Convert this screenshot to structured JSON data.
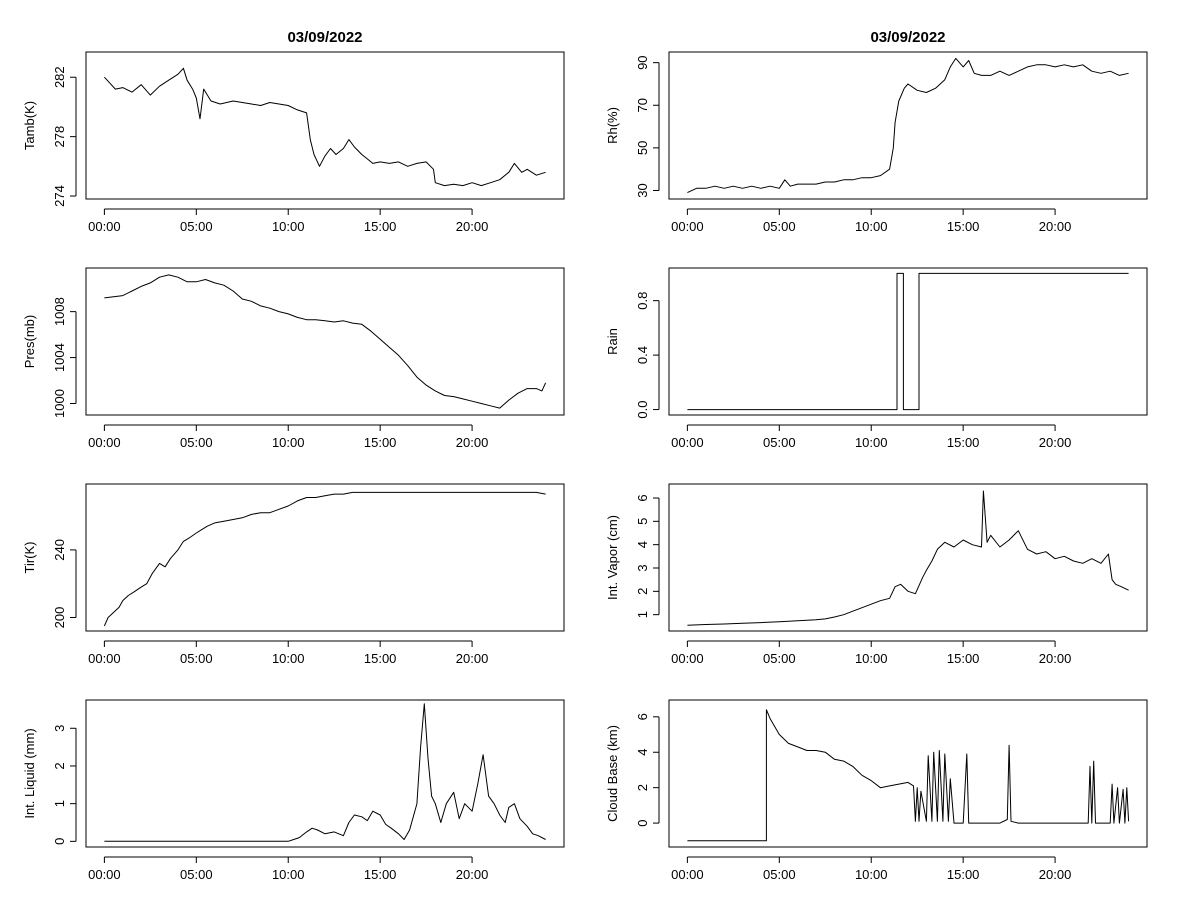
{
  "chart_data": [
    {
      "type": "line",
      "title": "03/09/2022",
      "xlabel": "",
      "ylabel": "Tamb(K)",
      "xlim": [
        -1,
        25
      ],
      "ylim": [
        273.8,
        283.7
      ],
      "xticks": [
        0,
        5,
        10,
        15,
        20
      ],
      "xtick_labels": [
        "00:00",
        "05:00",
        "10:00",
        "15:00",
        "20:00"
      ],
      "yticks": [
        274,
        278,
        282
      ],
      "ytick_labels": [
        "274",
        "278",
        "282"
      ],
      "grid": false,
      "legend": "none",
      "x": [
        0.0,
        0.3,
        0.6,
        1.0,
        1.5,
        2.0,
        2.5,
        3.0,
        3.5,
        4.0,
        4.3,
        4.5,
        4.8,
        5.0,
        5.2,
        5.4,
        5.8,
        6.3,
        7.0,
        7.5,
        8.0,
        8.5,
        9.0,
        9.5,
        10.0,
        10.5,
        11.0,
        11.2,
        11.4,
        11.7,
        12.0,
        12.3,
        12.6,
        13.0,
        13.3,
        13.6,
        14.0,
        14.3,
        14.6,
        15.0,
        15.5,
        16.0,
        16.5,
        17.0,
        17.5,
        17.9,
        18.0,
        18.5,
        19.0,
        19.5,
        20.0,
        20.5,
        21.0,
        21.5,
        22.0,
        22.3,
        22.7,
        23.0,
        23.5,
        24.0
      ],
      "y": [
        282.0,
        281.6,
        281.2,
        281.3,
        281.0,
        281.5,
        280.8,
        281.4,
        281.8,
        282.2,
        282.6,
        281.8,
        281.2,
        280.6,
        279.2,
        281.2,
        280.4,
        280.2,
        280.4,
        280.3,
        280.2,
        280.1,
        280.3,
        280.2,
        280.1,
        279.8,
        279.6,
        277.8,
        276.8,
        276.0,
        276.7,
        277.2,
        276.8,
        277.2,
        277.8,
        277.3,
        276.8,
        276.5,
        276.2,
        276.3,
        276.2,
        276.3,
        276.0,
        276.2,
        276.3,
        275.8,
        274.9,
        274.7,
        274.8,
        274.7,
        274.9,
        274.7,
        274.9,
        275.1,
        275.6,
        276.2,
        275.6,
        275.8,
        275.4,
        275.6
      ]
    },
    {
      "type": "line",
      "title": "03/09/2022",
      "xlabel": "",
      "ylabel": "Rh(%)",
      "xlim": [
        -1,
        25
      ],
      "ylim": [
        26,
        95
      ],
      "xticks": [
        0,
        5,
        10,
        15,
        20
      ],
      "xtick_labels": [
        "00:00",
        "05:00",
        "10:00",
        "15:00",
        "20:00"
      ],
      "yticks": [
        30,
        50,
        70,
        90
      ],
      "ytick_labels": [
        "30",
        "50",
        "70",
        "90"
      ],
      "grid": false,
      "legend": "none",
      "x": [
        0.0,
        0.5,
        1.0,
        1.5,
        2.0,
        2.5,
        3.0,
        3.5,
        4.0,
        4.5,
        5.0,
        5.3,
        5.6,
        6.0,
        6.5,
        7.0,
        7.5,
        8.0,
        8.5,
        9.0,
        9.5,
        10.0,
        10.5,
        11.0,
        11.2,
        11.3,
        11.5,
        11.8,
        12.0,
        12.5,
        13.0,
        13.5,
        14.0,
        14.3,
        14.6,
        15.0,
        15.3,
        15.6,
        16.0,
        16.5,
        17.0,
        17.5,
        18.0,
        18.5,
        19.0,
        19.5,
        20.0,
        20.5,
        21.0,
        21.5,
        22.0,
        22.5,
        23.0,
        23.5,
        24.0
      ],
      "y": [
        29,
        31,
        31,
        32,
        31,
        32,
        31,
        32,
        31,
        32,
        31,
        35,
        32,
        33,
        33,
        33,
        34,
        34,
        35,
        35,
        36,
        36,
        37,
        40,
        50,
        62,
        72,
        78,
        80,
        77,
        76,
        78,
        82,
        88,
        92,
        88,
        91,
        85,
        84,
        84,
        86,
        84,
        86,
        88,
        89,
        89,
        88,
        89,
        88,
        89,
        86,
        85,
        86,
        84,
        85
      ]
    },
    {
      "type": "line",
      "title": "",
      "xlabel": "",
      "ylabel": "Pres(mb)",
      "xlim": [
        -1,
        25
      ],
      "ylim": [
        999.0,
        1011.8
      ],
      "xticks": [
        0,
        5,
        10,
        15,
        20
      ],
      "xtick_labels": [
        "00:00",
        "05:00",
        "10:00",
        "15:00",
        "20:00"
      ],
      "yticks": [
        1000,
        1004,
        1008
      ],
      "ytick_labels": [
        "1000",
        "1004",
        "1008"
      ],
      "grid": false,
      "legend": "none",
      "x": [
        0.0,
        0.5,
        1.0,
        1.5,
        2.0,
        2.5,
        3.0,
        3.5,
        4.0,
        4.5,
        5.0,
        5.5,
        6.0,
        6.5,
        7.0,
        7.5,
        8.0,
        8.5,
        9.0,
        9.5,
        10.0,
        10.5,
        11.0,
        11.5,
        12.0,
        12.5,
        13.0,
        13.5,
        14.0,
        14.5,
        15.0,
        15.5,
        16.0,
        16.5,
        17.0,
        17.5,
        18.0,
        18.5,
        19.0,
        19.5,
        20.0,
        20.5,
        21.0,
        21.5,
        22.0,
        22.5,
        23.0,
        23.5,
        23.8,
        24.0
      ],
      "y": [
        1009.2,
        1009.3,
        1009.4,
        1009.8,
        1010.2,
        1010.5,
        1011.0,
        1011.2,
        1011.0,
        1010.6,
        1010.6,
        1010.8,
        1010.5,
        1010.3,
        1009.8,
        1009.1,
        1008.9,
        1008.5,
        1008.3,
        1008.0,
        1007.8,
        1007.5,
        1007.3,
        1007.3,
        1007.2,
        1007.1,
        1007.2,
        1007.0,
        1006.9,
        1006.3,
        1005.6,
        1004.9,
        1004.2,
        1003.3,
        1002.3,
        1001.6,
        1001.1,
        1000.7,
        1000.6,
        1000.4,
        1000.2,
        1000.0,
        999.8,
        999.6,
        1000.3,
        1000.9,
        1001.3,
        1001.3,
        1001.1,
        1001.8
      ]
    },
    {
      "type": "line",
      "title": "",
      "xlabel": "",
      "ylabel": "Rain",
      "xlim": [
        -1,
        25
      ],
      "ylim": [
        -0.04,
        1.04
      ],
      "xticks": [
        0,
        5,
        10,
        15,
        20
      ],
      "xtick_labels": [
        "00:00",
        "05:00",
        "10:00",
        "15:00",
        "20:00"
      ],
      "yticks": [
        0.0,
        0.4,
        0.8
      ],
      "ytick_labels": [
        "0.0",
        "0.4",
        "0.8"
      ],
      "grid": false,
      "legend": "none",
      "step": true,
      "x": [
        0.0,
        11.4,
        11.4,
        11.75,
        11.75,
        12.6,
        12.6,
        24.0
      ],
      "y": [
        0,
        0,
        1,
        1,
        0,
        0,
        1,
        1
      ]
    },
    {
      "type": "line",
      "title": "",
      "xlabel": "",
      "ylabel": "Tir(K)",
      "xlim": [
        -1,
        25
      ],
      "ylim": [
        192,
        279
      ],
      "xticks": [
        0,
        5,
        10,
        15,
        20
      ],
      "xtick_labels": [
        "00:00",
        "05:00",
        "10:00",
        "15:00",
        "20:00"
      ],
      "yticks": [
        200,
        240
      ],
      "ytick_labels": [
        "200",
        "240"
      ],
      "grid": false,
      "legend": "none",
      "x": [
        0.0,
        0.2,
        0.5,
        0.8,
        1.0,
        1.3,
        1.6,
        2.0,
        2.3,
        2.6,
        3.0,
        3.3,
        3.6,
        4.0,
        4.3,
        4.6,
        5.0,
        5.3,
        5.6,
        6.0,
        6.5,
        7.0,
        7.5,
        8.0,
        8.5,
        9.0,
        9.5,
        10.0,
        10.5,
        11.0,
        11.5,
        12.0,
        12.5,
        13.0,
        13.5,
        14.0,
        15.0,
        16.0,
        17.0,
        18.0,
        19.0,
        20.0,
        21.0,
        22.0,
        23.0,
        23.5,
        24.0
      ],
      "y": [
        195,
        200,
        203,
        206,
        210,
        213,
        215,
        218,
        220,
        226,
        232,
        230,
        235,
        240,
        245,
        247,
        250,
        252,
        254,
        256,
        257,
        258,
        259,
        261,
        262,
        262,
        264,
        266,
        269,
        271,
        271,
        272,
        273,
        273,
        274,
        274,
        274,
        274,
        274,
        274,
        274,
        274,
        274,
        274,
        274,
        274,
        273
      ]
    },
    {
      "type": "line",
      "title": "",
      "xlabel": "",
      "ylabel": "Int. Vapor (cm)",
      "xlim": [
        -1,
        25
      ],
      "ylim": [
        0.3,
        6.6
      ],
      "xticks": [
        0,
        5,
        10,
        15,
        20
      ],
      "xtick_labels": [
        "00:00",
        "05:00",
        "10:00",
        "15:00",
        "20:00"
      ],
      "yticks": [
        1,
        2,
        3,
        4,
        5,
        6
      ],
      "ytick_labels": [
        "1",
        "2",
        "3",
        "4",
        "5",
        "6"
      ],
      "grid": false,
      "legend": "none",
      "x": [
        0.0,
        1.0,
        2.0,
        3.0,
        4.0,
        5.0,
        6.0,
        7.0,
        7.5,
        8.0,
        8.5,
        9.0,
        9.5,
        10.0,
        10.5,
        11.0,
        11.3,
        11.6,
        12.0,
        12.4,
        12.8,
        13.0,
        13.3,
        13.6,
        14.0,
        14.5,
        15.0,
        15.5,
        16.0,
        16.1,
        16.3,
        16.5,
        17.0,
        17.5,
        18.0,
        18.5,
        19.0,
        19.5,
        20.0,
        20.5,
        21.0,
        21.5,
        22.0,
        22.5,
        22.9,
        23.1,
        23.3,
        23.6,
        24.0
      ],
      "y": [
        0.55,
        0.58,
        0.6,
        0.63,
        0.66,
        0.7,
        0.74,
        0.78,
        0.82,
        0.9,
        1.0,
        1.15,
        1.3,
        1.45,
        1.6,
        1.7,
        2.2,
        2.3,
        2.0,
        1.9,
        2.6,
        2.9,
        3.3,
        3.8,
        4.1,
        3.9,
        4.2,
        4.0,
        3.9,
        6.3,
        4.1,
        4.4,
        3.9,
        4.2,
        4.6,
        3.8,
        3.6,
        3.7,
        3.4,
        3.5,
        3.3,
        3.2,
        3.4,
        3.2,
        3.6,
        2.5,
        2.3,
        2.2,
        2.05
      ]
    },
    {
      "type": "line",
      "title": "",
      "xlabel": "",
      "ylabel": "Int. Liquid (mm)",
      "xlim": [
        -1,
        25
      ],
      "ylim": [
        -0.15,
        3.75
      ],
      "xticks": [
        0,
        5,
        10,
        15,
        20
      ],
      "xtick_labels": [
        "00:00",
        "05:00",
        "10:00",
        "15:00",
        "20:00"
      ],
      "yticks": [
        0,
        1,
        2,
        3
      ],
      "ytick_labels": [
        "0",
        "1",
        "2",
        "3"
      ],
      "grid": false,
      "legend": "none",
      "x": [
        0.0,
        5.0,
        10.0,
        10.3,
        10.6,
        11.0,
        11.3,
        11.6,
        12.0,
        12.5,
        13.0,
        13.3,
        13.6,
        14.0,
        14.3,
        14.6,
        15.0,
        15.3,
        15.6,
        16.0,
        16.3,
        16.6,
        17.0,
        17.2,
        17.4,
        17.6,
        17.8,
        18.0,
        18.3,
        18.6,
        19.0,
        19.3,
        19.6,
        20.0,
        20.3,
        20.6,
        20.9,
        21.2,
        21.5,
        21.8,
        22.0,
        22.3,
        22.6,
        23.0,
        23.3,
        23.6,
        24.0
      ],
      "y": [
        0.0,
        0.0,
        0.0,
        0.05,
        0.1,
        0.25,
        0.35,
        0.3,
        0.2,
        0.25,
        0.15,
        0.5,
        0.7,
        0.65,
        0.55,
        0.8,
        0.7,
        0.45,
        0.35,
        0.2,
        0.05,
        0.3,
        1.0,
        2.5,
        3.65,
        2.2,
        1.2,
        1.0,
        0.5,
        1.0,
        1.3,
        0.6,
        1.0,
        0.8,
        1.5,
        2.3,
        1.2,
        1.0,
        0.7,
        0.5,
        0.9,
        1.0,
        0.6,
        0.4,
        0.2,
        0.15,
        0.05
      ]
    },
    {
      "type": "line",
      "title": "",
      "xlabel": "",
      "ylabel": "Cloud Base (km)",
      "xlim": [
        -1,
        25
      ],
      "ylim": [
        -1.35,
        6.95
      ],
      "xticks": [
        0,
        5,
        10,
        15,
        20
      ],
      "xtick_labels": [
        "00:00",
        "05:00",
        "10:00",
        "15:00",
        "20:00"
      ],
      "yticks": [
        0,
        2,
        4,
        6
      ],
      "ytick_labels": [
        "0",
        "2",
        "4",
        "6"
      ],
      "grid": false,
      "legend": "none",
      "x": [
        0.0,
        4.3,
        4.3,
        4.5,
        5.0,
        5.5,
        6.0,
        6.5,
        7.0,
        7.5,
        8.0,
        8.5,
        9.0,
        9.5,
        10.0,
        10.5,
        11.0,
        11.5,
        12.0,
        12.3,
        12.4,
        12.5,
        12.6,
        12.7,
        13.0,
        13.1,
        13.3,
        13.4,
        13.6,
        13.7,
        13.9,
        14.0,
        14.2,
        14.3,
        14.5,
        15.0,
        15.2,
        15.3,
        15.5,
        16.0,
        16.5,
        17.0,
        17.4,
        17.5,
        17.6,
        18.0,
        19.0,
        20.0,
        21.0,
        21.8,
        21.9,
        22.0,
        22.1,
        22.2,
        22.3,
        22.5,
        23.0,
        23.1,
        23.2,
        23.4,
        23.5,
        23.7,
        23.8,
        23.9,
        24.0
      ],
      "y": [
        -1.0,
        -1.0,
        6.4,
        5.9,
        5.0,
        4.5,
        4.3,
        4.1,
        4.1,
        4.0,
        3.6,
        3.5,
        3.2,
        2.7,
        2.4,
        2.0,
        2.1,
        2.2,
        2.3,
        2.1,
        0.1,
        2.0,
        0.1,
        1.8,
        0.1,
        3.8,
        0.1,
        4.0,
        0.1,
        4.1,
        0.1,
        3.9,
        0.1,
        2.5,
        0.0,
        0.0,
        3.9,
        0.0,
        0.0,
        0.0,
        0.0,
        0.0,
        0.2,
        4.4,
        0.1,
        0.0,
        0.0,
        0.0,
        0.0,
        0.0,
        3.2,
        0.0,
        3.5,
        0.0,
        0.0,
        0.0,
        0.0,
        2.2,
        0.0,
        2.0,
        0.0,
        1.9,
        0.0,
        2.0,
        0.1
      ]
    }
  ]
}
